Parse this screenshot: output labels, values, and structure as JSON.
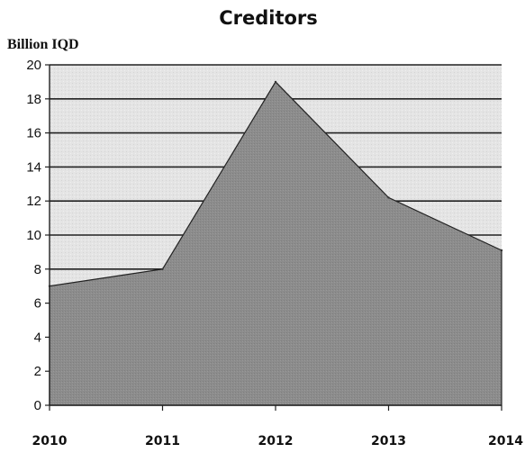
{
  "chart_data": {
    "type": "area",
    "title": "Creditors",
    "ylabel": "Billion IQD",
    "xlabel": "",
    "categories": [
      "2010",
      "2011",
      "2012",
      "2013",
      "2014"
    ],
    "values": [
      7,
      8,
      19,
      12.2,
      9.1
    ],
    "ylim": [
      0,
      20
    ],
    "yticks": [
      "0",
      "2",
      "4",
      "6",
      "8",
      "10",
      "12",
      "14",
      "16",
      "18",
      "20"
    ],
    "grid": true,
    "legend": "none",
    "colors": {
      "area_fill": "#8c8c8c",
      "plot_background": "#e6e6e6",
      "gridline": "#222222"
    }
  }
}
